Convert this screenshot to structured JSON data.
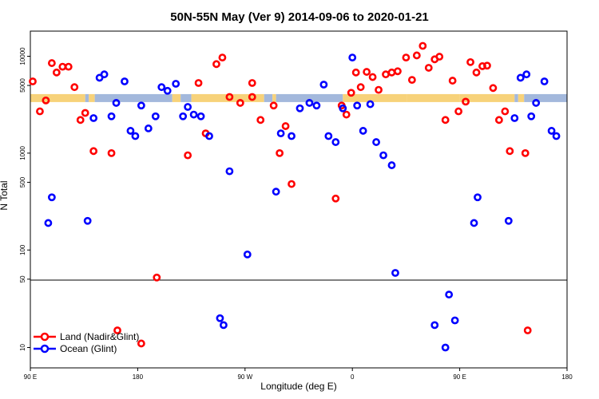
{
  "chart_data": {
    "type": "scatter",
    "title": "50N-55N May (Ver 9)   2014-09-06 to 2020-01-21",
    "xlabel": "Longitude (deg E)",
    "ylabel": "N Total",
    "x_ticks": [
      {
        "value": 90,
        "label": "90 E"
      },
      {
        "value": 180,
        "label": "180"
      },
      {
        "value": 270,
        "label": "90 W"
      },
      {
        "value": 360,
        "label": "0"
      },
      {
        "value": 450,
        "label": "90 E"
      },
      {
        "value": 540,
        "label": "180"
      }
    ],
    "y_ticks": [
      10,
      50,
      100,
      500,
      1000,
      5000,
      10000
    ],
    "xlim": [
      90,
      540
    ],
    "y_scale": "log",
    "split_at": 50,
    "legend_position": "bottom-left",
    "band_level": 3700,
    "band_colors": {
      "land": "#F7D27A",
      "ocean": "#A3B8DC"
    },
    "band_segments": [
      {
        "x0": 90,
        "x1": 136,
        "kind": "land"
      },
      {
        "x0": 136,
        "x1": 139,
        "kind": "ocean"
      },
      {
        "x0": 139,
        "x1": 144,
        "kind": "land"
      },
      {
        "x0": 144,
        "x1": 209,
        "kind": "ocean"
      },
      {
        "x0": 209,
        "x1": 216,
        "kind": "land"
      },
      {
        "x0": 216,
        "x1": 225,
        "kind": "ocean"
      },
      {
        "x0": 225,
        "x1": 286,
        "kind": "land"
      },
      {
        "x0": 286,
        "x1": 293,
        "kind": "ocean"
      },
      {
        "x0": 293,
        "x1": 296,
        "kind": "land"
      },
      {
        "x0": 296,
        "x1": 352,
        "kind": "ocean"
      },
      {
        "x0": 352,
        "x1": 406,
        "kind": "land"
      },
      {
        "x0": 406,
        "x1": 450,
        "kind": "land"
      },
      {
        "x0": 450,
        "x1": 496,
        "kind": "land"
      },
      {
        "x0": 496,
        "x1": 499,
        "kind": "ocean"
      },
      {
        "x0": 499,
        "x1": 504,
        "kind": "land"
      },
      {
        "x0": 504,
        "x1": 540,
        "kind": "ocean"
      }
    ],
    "series": [
      {
        "name": "Land (Nadir&Glint)",
        "color": "#FF0000",
        "points": [
          [
            92,
            5500
          ],
          [
            98,
            2700
          ],
          [
            103,
            3500
          ],
          [
            108,
            8500
          ],
          [
            112,
            6800
          ],
          [
            117,
            7800
          ],
          [
            122,
            7800
          ],
          [
            127,
            4800
          ],
          [
            132,
            2200
          ],
          [
            136,
            2600
          ],
          [
            143,
            1050
          ],
          [
            158,
            1000
          ],
          [
            163,
            15
          ],
          [
            183,
            11
          ],
          [
            196,
            52
          ],
          [
            222,
            950
          ],
          [
            231,
            5300
          ],
          [
            237,
            1600
          ],
          [
            246,
            8300
          ],
          [
            251,
            9700
          ],
          [
            257,
            3800
          ],
          [
            266,
            3300
          ],
          [
            276,
            3800
          ],
          [
            276,
            5300
          ],
          [
            283,
            2200
          ],
          [
            294,
            3100
          ],
          [
            299,
            1000
          ],
          [
            304,
            1900
          ],
          [
            309,
            480
          ],
          [
            346,
            340
          ],
          [
            351,
            3100
          ],
          [
            355,
            2500
          ],
          [
            359,
            4200
          ],
          [
            363,
            6800
          ],
          [
            367,
            4800
          ],
          [
            372,
            6900
          ],
          [
            377,
            6100
          ],
          [
            382,
            4500
          ],
          [
            388,
            6500
          ],
          [
            393,
            6800
          ],
          [
            398,
            7000
          ],
          [
            405,
            9700
          ],
          [
            410,
            5700
          ],
          [
            414,
            10200
          ],
          [
            419,
            12800
          ],
          [
            424,
            7600
          ],
          [
            429,
            9300
          ],
          [
            433,
            9900
          ],
          [
            438,
            2200
          ],
          [
            444,
            5600
          ],
          [
            449,
            2700
          ],
          [
            455,
            3400
          ],
          [
            459,
            8700
          ],
          [
            464,
            6800
          ],
          [
            469,
            7900
          ],
          [
            473,
            8000
          ],
          [
            478,
            4700
          ],
          [
            483,
            2200
          ],
          [
            488,
            2700
          ],
          [
            492,
            1050
          ],
          [
            505,
            1000
          ],
          [
            507,
            15
          ]
        ]
      },
      {
        "name": "Ocean (Glint)",
        "color": "#0000FF",
        "points": [
          [
            105,
            190
          ],
          [
            108,
            350
          ],
          [
            138,
            200
          ],
          [
            143,
            2300
          ],
          [
            148,
            6000
          ],
          [
            152,
            6500
          ],
          [
            158,
            2400
          ],
          [
            162,
            3300
          ],
          [
            169,
            5500
          ],
          [
            174,
            1700
          ],
          [
            178,
            1500
          ],
          [
            183,
            3100
          ],
          [
            189,
            1800
          ],
          [
            195,
            2400
          ],
          [
            200,
            4800
          ],
          [
            205,
            4400
          ],
          [
            212,
            5200
          ],
          [
            218,
            2400
          ],
          [
            222,
            3000
          ],
          [
            227,
            2500
          ],
          [
            233,
            2400
          ],
          [
            240,
            1500
          ],
          [
            249,
            20
          ],
          [
            252,
            17
          ],
          [
            257,
            650
          ],
          [
            272,
            90
          ],
          [
            296,
            400
          ],
          [
            300,
            1600
          ],
          [
            309,
            1500
          ],
          [
            316,
            2900
          ],
          [
            324,
            3300
          ],
          [
            330,
            3100
          ],
          [
            336,
            5100
          ],
          [
            340,
            1500
          ],
          [
            346,
            1300
          ],
          [
            352,
            2900
          ],
          [
            360,
            9700
          ],
          [
            364,
            3100
          ],
          [
            369,
            1700
          ],
          [
            375,
            3200
          ],
          [
            380,
            1300
          ],
          [
            386,
            950
          ],
          [
            393,
            750
          ],
          [
            396,
            58
          ],
          [
            429,
            17
          ],
          [
            438,
            10
          ],
          [
            441,
            35
          ],
          [
            446,
            19
          ],
          [
            462,
            190
          ],
          [
            465,
            350
          ],
          [
            491,
            200
          ],
          [
            496,
            2300
          ],
          [
            501,
            6000
          ],
          [
            506,
            6500
          ],
          [
            510,
            2400
          ],
          [
            514,
            3300
          ],
          [
            521,
            5500
          ],
          [
            527,
            1700
          ],
          [
            531,
            1500
          ]
        ]
      }
    ]
  }
}
